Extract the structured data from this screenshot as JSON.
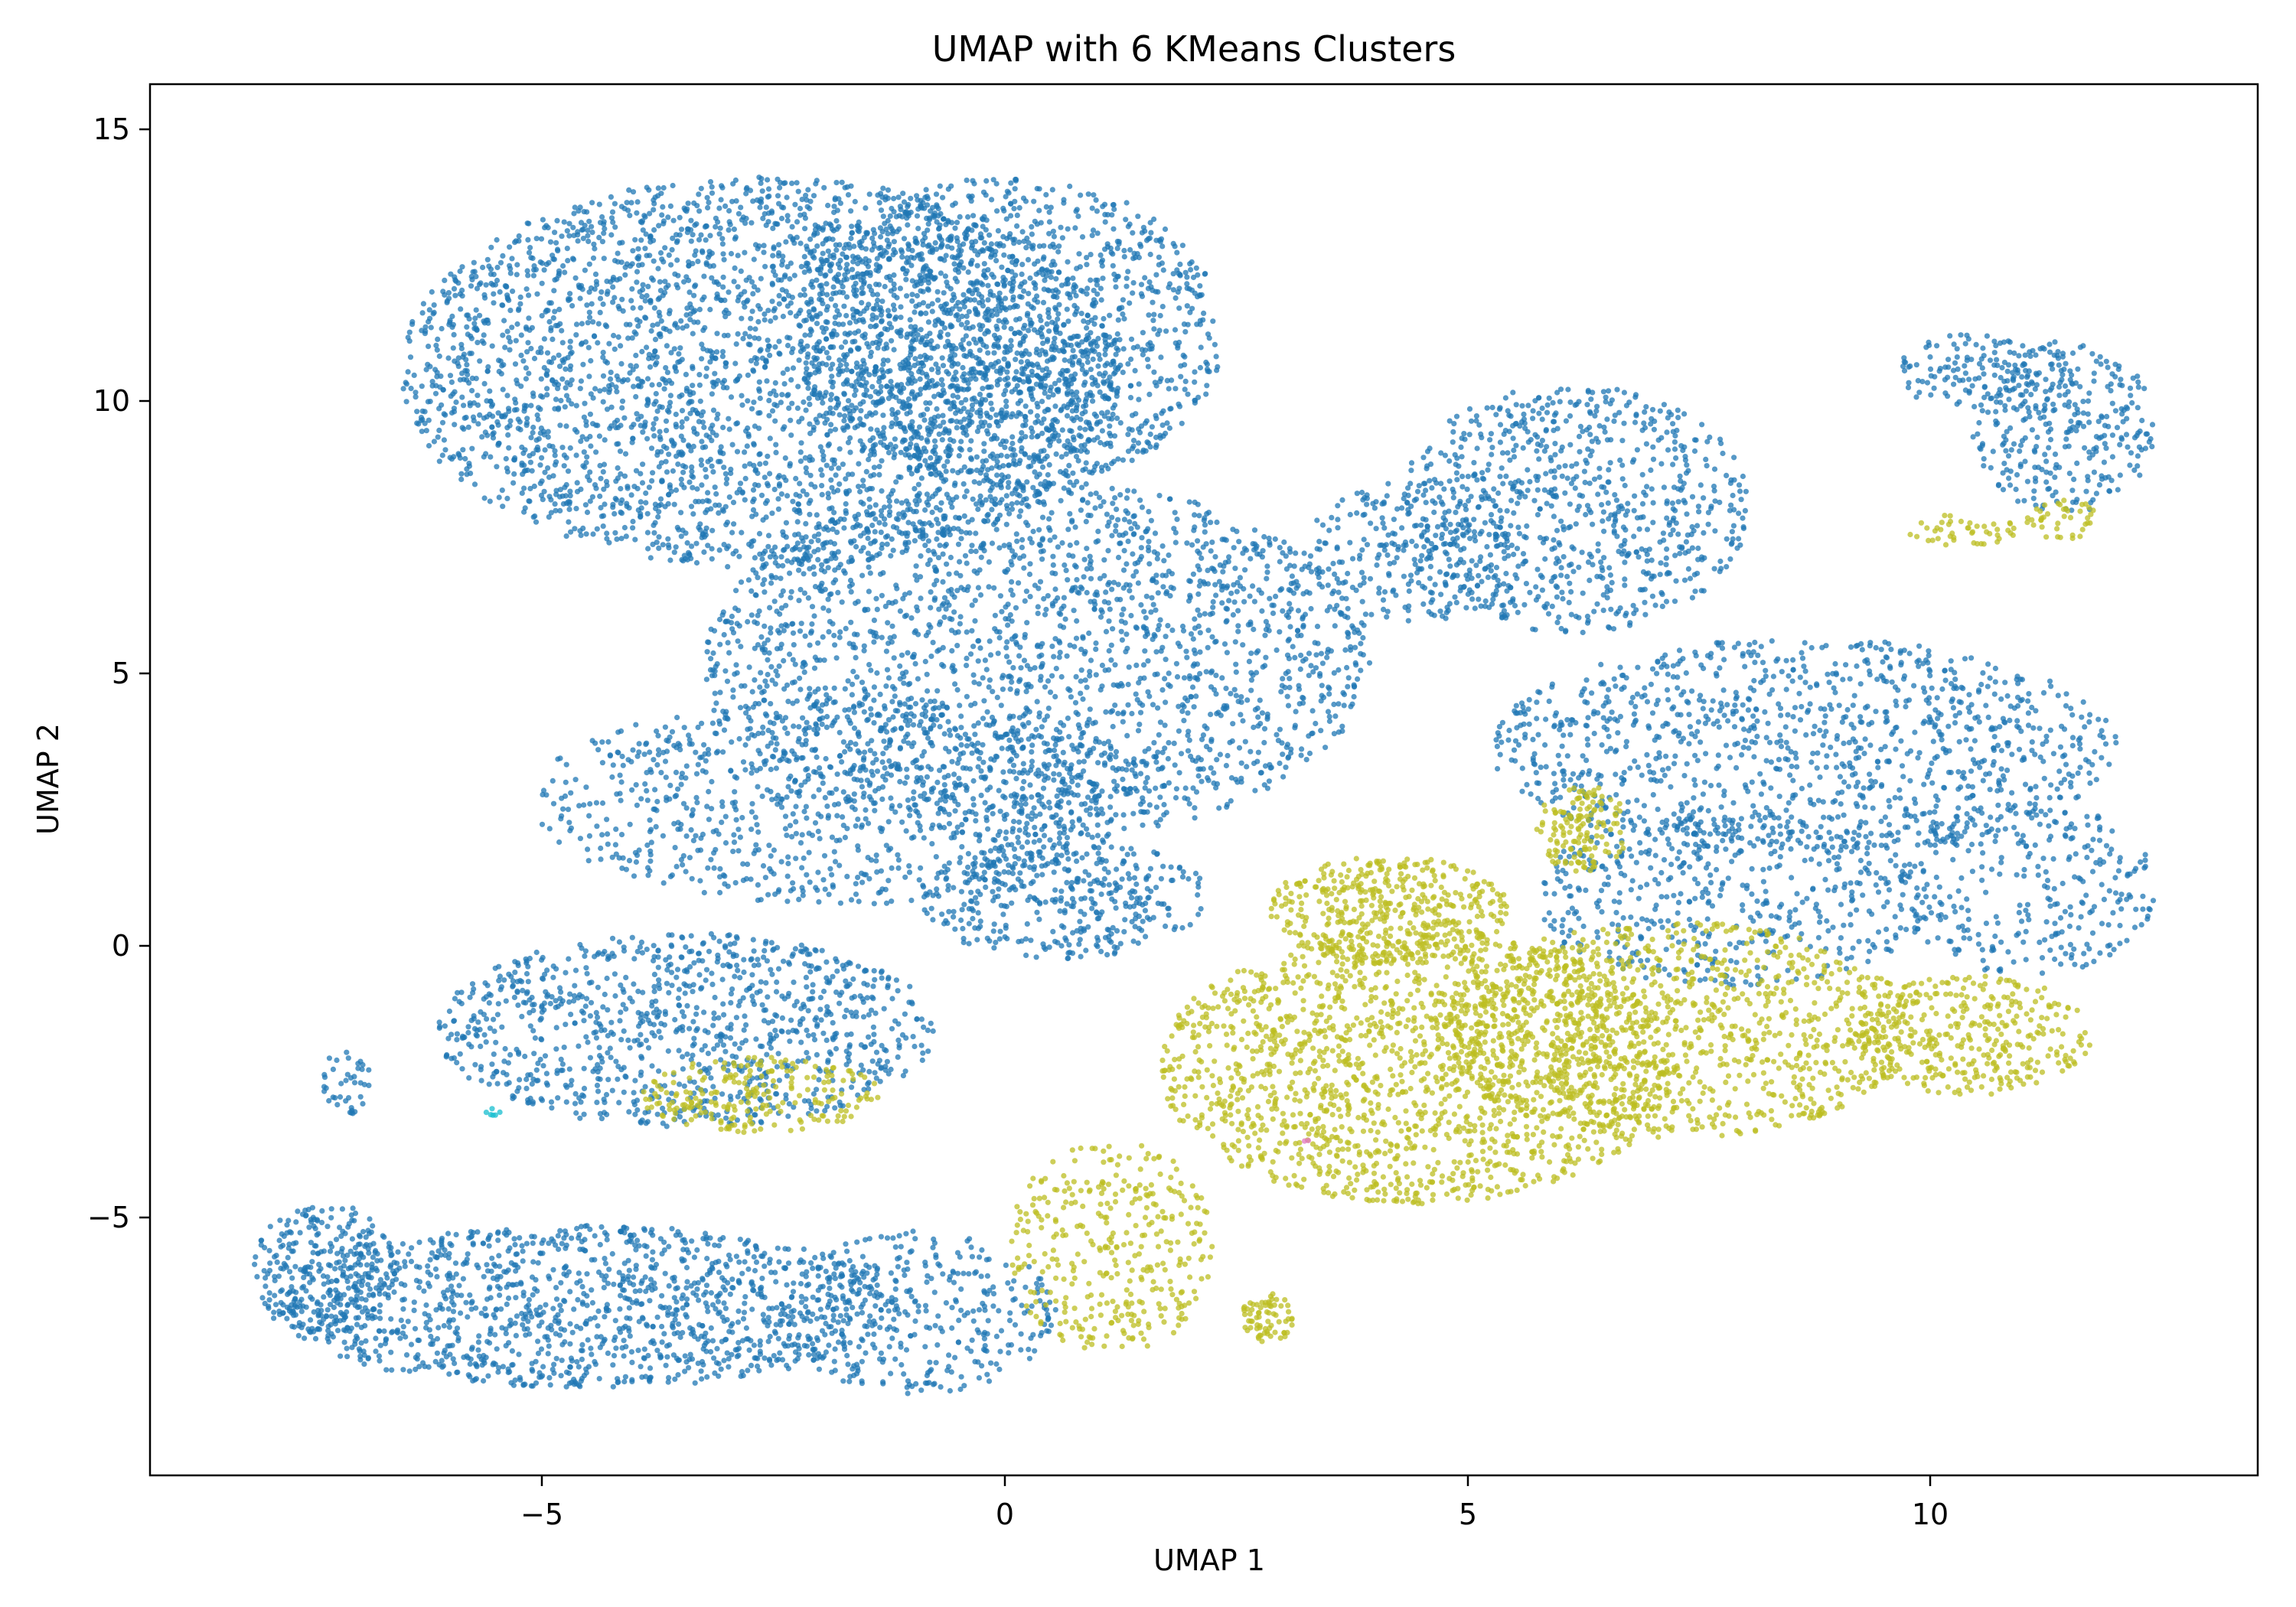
{
  "chart_data": {
    "type": "scatter",
    "title": "UMAP with 6 KMeans Clusters",
    "xlabel": "UMAP 1",
    "ylabel": "UMAP 2",
    "xlim": [
      -9.1,
      13.7
    ],
    "ylim": [
      -9.8,
      15.8
    ],
    "xticks": [
      -5,
      0,
      5,
      10
    ],
    "yticks": [
      -5,
      0,
      5,
      10,
      15
    ],
    "xtick_labels": [
      "−5",
      "0",
      "5",
      "10"
    ],
    "ytick_labels": [
      "−5",
      "0",
      "5",
      "10",
      "15"
    ],
    "grid": false,
    "legend": "none",
    "series": [
      {
        "color": "#1f77b4",
        "regions": [
          {
            "cx": -2.5,
            "cy": 10.5,
            "rx": 3.9,
            "ry": 3.6,
            "n": 3200
          },
          {
            "cx": 0.2,
            "cy": 11.2,
            "rx": 2.3,
            "ry": 2.9,
            "n": 1400
          },
          {
            "cx": 0.5,
            "cy": 5.2,
            "rx": 3.6,
            "ry": 3.3,
            "n": 2100
          },
          {
            "cx": -1.6,
            "cy": 2.6,
            "rx": 3.4,
            "ry": 1.9,
            "n": 900
          },
          {
            "cx": 6.3,
            "cy": 8.0,
            "rx": 1.9,
            "ry": 2.3,
            "n": 800
          },
          {
            "cx": 4.6,
            "cy": 7.2,
            "rx": 1.2,
            "ry": 1.3,
            "n": 250
          },
          {
            "cx": 8.8,
            "cy": 3.6,
            "rx": 3.4,
            "ry": 2.0,
            "n": 1100
          },
          {
            "cx": 11.2,
            "cy": 1.0,
            "rx": 1.4,
            "ry": 1.6,
            "n": 300
          },
          {
            "cx": -3.3,
            "cy": -1.6,
            "rx": 2.7,
            "ry": 1.8,
            "n": 1000
          },
          {
            "cx": -4.4,
            "cy": -6.7,
            "rx": 3.4,
            "ry": 1.5,
            "n": 1300
          },
          {
            "cx": -0.8,
            "cy": -6.8,
            "rx": 1.5,
            "ry": 1.5,
            "n": 350
          },
          {
            "cx": 11.6,
            "cy": 9.5,
            "rx": 1.0,
            "ry": 1.6,
            "n": 320
          },
          {
            "cx": 10.6,
            "cy": 10.5,
            "rx": 0.8,
            "ry": 0.7,
            "n": 120
          },
          {
            "cx": 8.0,
            "cy": 0.8,
            "rx": 2.2,
            "ry": 1.6,
            "n": 500
          },
          {
            "cx": 0.8,
            "cy": 0.8,
            "rx": 1.6,
            "ry": 1.1,
            "n": 380
          },
          {
            "cx": -7.0,
            "cy": -2.6,
            "rx": 0.3,
            "ry": 0.6,
            "n": 40
          },
          {
            "cx": -7.2,
            "cy": -6.0,
            "rx": 0.8,
            "ry": 1.2,
            "n": 250
          }
        ]
      },
      {
        "color": "#bcbd22",
        "regions": [
          {
            "cx": 4.6,
            "cy": -2.3,
            "rx": 2.8,
            "ry": 2.5,
            "n": 1700
          },
          {
            "cx": 7.4,
            "cy": -1.6,
            "rx": 2.6,
            "ry": 2.0,
            "n": 1100
          },
          {
            "cx": 10.6,
            "cy": -1.7,
            "rx": 1.3,
            "ry": 1.1,
            "n": 350
          },
          {
            "cx": 4.3,
            "cy": 0.6,
            "rx": 1.3,
            "ry": 1.0,
            "n": 450
          },
          {
            "cx": 6.4,
            "cy": 2.1,
            "rx": 0.5,
            "ry": 0.8,
            "n": 140
          },
          {
            "cx": 1.3,
            "cy": -5.6,
            "rx": 1.1,
            "ry": 2.0,
            "n": 350
          },
          {
            "cx": 3.0,
            "cy": -6.9,
            "rx": 0.3,
            "ry": 0.45,
            "n": 70
          },
          {
            "cx": -2.5,
            "cy": -2.8,
            "rx": 1.3,
            "ry": 0.7,
            "n": 220
          },
          {
            "cx": 10.5,
            "cy": 7.6,
            "rx": 0.6,
            "ry": 0.3,
            "n": 45
          },
          {
            "cx": 11.6,
            "cy": 7.8,
            "rx": 0.4,
            "ry": 0.4,
            "n": 40
          }
        ]
      },
      {
        "color": "#17becf",
        "regions": [
          {
            "cx": -5.4,
            "cy": -3.1,
            "rx": 0.12,
            "ry": 0.08,
            "n": 6
          }
        ]
      },
      {
        "color": "#e377c2",
        "regions": [
          {
            "cx": 3.4,
            "cy": -3.6,
            "rx": 0.05,
            "ry": 0.05,
            "n": 2
          }
        ]
      }
    ]
  }
}
